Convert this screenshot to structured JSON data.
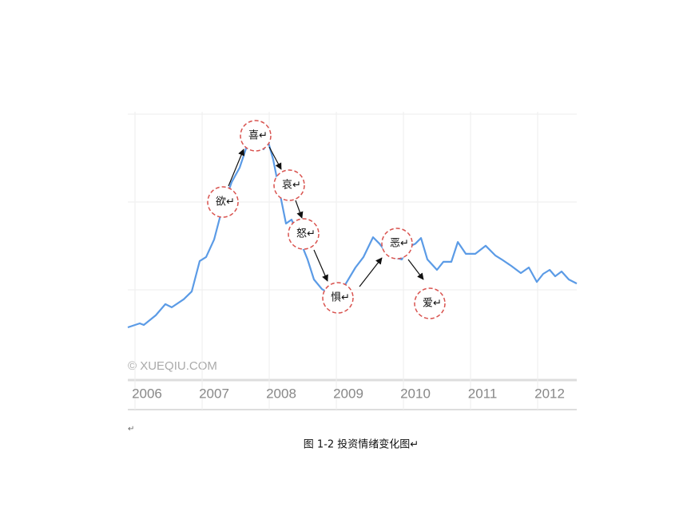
{
  "chart_data": {
    "type": "line",
    "watermark": "© XUEQIU.COM",
    "x": [
      2005.893,
      2006.071,
      2006.131,
      2006.31,
      2006.452,
      2006.548,
      2006.726,
      2006.845,
      2006.964,
      2007.06,
      2007.179,
      2007.298,
      2007.44,
      2007.56,
      2007.679,
      2007.774,
      2007.857,
      2007.917,
      2007.976,
      2008.06,
      2008.155,
      2008.25,
      2008.333,
      2008.452,
      2008.571,
      2008.667,
      2008.786,
      2008.905,
      2009.024,
      2009.143,
      2009.286,
      2009.405,
      2009.548,
      2009.643,
      2009.762,
      2009.857,
      2009.976,
      2010.06,
      2010.179,
      2010.262,
      2010.357,
      2010.5,
      2010.595,
      2010.714,
      2010.81,
      2010.929,
      2011.071,
      2011.226,
      2011.369,
      2011.464,
      2011.607,
      2011.75,
      2011.869,
      2011.988,
      2012.083,
      2012.179,
      2012.262,
      2012.357,
      2012.464,
      2012.583
    ],
    "values": [
      19.4,
      20.9,
      20.3,
      23.9,
      28.1,
      26.9,
      29.9,
      32.8,
      44.2,
      45.7,
      52.2,
      63.6,
      73.7,
      79.1,
      88.1,
      87.2,
      89.6,
      86.0,
      89.6,
      82.1,
      70.1,
      58.2,
      59.7,
      52.2,
      44.8,
      37.3,
      33.7,
      31.9,
      30.7,
      35.8,
      41.8,
      45.7,
      53.1,
      50.7,
      46.9,
      45.7,
      44.8,
      49.3,
      50.7,
      52.8,
      44.8,
      40.9,
      43.9,
      43.9,
      51.3,
      46.9,
      46.9,
      49.9,
      46.3,
      44.8,
      42.4,
      39.7,
      41.8,
      36.4,
      39.4,
      40.9,
      38.5,
      40.3,
      37.3,
      35.8
    ],
    "color": "#5b9be6",
    "xlim": [
      2005.893,
      2012.583
    ],
    "xticks": [
      2006,
      2007,
      2008,
      2009,
      2010,
      2011,
      2012
    ],
    "ylim": [
      0,
      100
    ],
    "annotations": [
      "欲↵",
      "喜↵",
      "哀↵",
      "怒↵",
      "惧↵",
      "恶↵",
      "爱↵"
    ]
  },
  "empty_paragraph": "↵",
  "caption": "图 1-2 投资情绪变化图↵"
}
